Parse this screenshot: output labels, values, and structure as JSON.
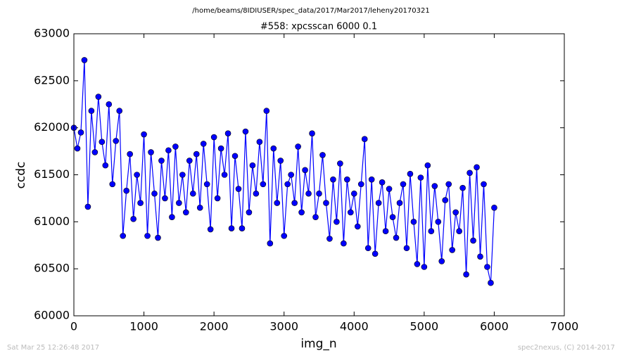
{
  "chart_data": {
    "type": "line",
    "suptitle": "/home/beams/8IDIUSER/spec_data/2017/Mar2017/leheny20170321",
    "title": "#558: xpcsscan 6000 0.1",
    "x_label": "img_n",
    "y_label": "ccdc",
    "footer_left": "Sat Mar 25 12:26:48 2017",
    "footer_right": "spec2nexus, (C) 2014-2017",
    "xlim": [
      0,
      7000
    ],
    "ylim": [
      60000,
      63000
    ],
    "xticks": [
      0,
      1000,
      2000,
      3000,
      4000,
      5000,
      6000,
      7000
    ],
    "yticks": [
      60000,
      60500,
      61000,
      61500,
      62000,
      62500,
      63000
    ],
    "series": [
      {
        "color": "#0000ff",
        "x": [
          0,
          50,
          100,
          150,
          200,
          250,
          300,
          350,
          400,
          450,
          500,
          550,
          600,
          650,
          700,
          750,
          800,
          850,
          900,
          950,
          1000,
          1050,
          1100,
          1150,
          1200,
          1250,
          1300,
          1350,
          1400,
          1450,
          1500,
          1550,
          1600,
          1650,
          1700,
          1750,
          1800,
          1850,
          1900,
          1950,
          2000,
          2050,
          2100,
          2150,
          2200,
          2250,
          2300,
          2350,
          2400,
          2450,
          2500,
          2550,
          2600,
          2650,
          2700,
          2750,
          2800,
          2850,
          2900,
          2950,
          3000,
          3050,
          3100,
          3150,
          3200,
          3250,
          3300,
          3350,
          3400,
          3450,
          3500,
          3550,
          3600,
          3650,
          3700,
          3750,
          3800,
          3850,
          3900,
          3950,
          4000,
          4050,
          4100,
          4150,
          4200,
          4250,
          4300,
          4350,
          4400,
          4450,
          4500,
          4550,
          4600,
          4650,
          4700,
          4750,
          4800,
          4850,
          4900,
          4950,
          5000,
          5050,
          5100,
          5150,
          5200,
          5250,
          5300,
          5350,
          5400,
          5450,
          5500,
          5550,
          5600,
          5650,
          5700,
          5750,
          5800,
          5850,
          5900,
          5950,
          6000
        ],
        "values": [
          62000,
          61780,
          61950,
          62720,
          61160,
          62180,
          61740,
          62330,
          61850,
          61600,
          62250,
          61400,
          61860,
          62180,
          60850,
          61330,
          61720,
          61030,
          61500,
          61200,
          61930,
          60850,
          61740,
          61300,
          60830,
          61650,
          61250,
          61760,
          61050,
          61800,
          61200,
          61500,
          61100,
          61650,
          61300,
          61720,
          61150,
          61830,
          61400,
          60920,
          61900,
          61250,
          61780,
          61500,
          61940,
          60930,
          61700,
          61350,
          60930,
          61960,
          61100,
          61600,
          61300,
          61850,
          61400,
          62180,
          60770,
          61780,
          61200,
          61650,
          60850,
          61400,
          61500,
          61200,
          61800,
          61100,
          61550,
          61300,
          61940,
          61050,
          61300,
          61710,
          61200,
          60820,
          61450,
          61000,
          61620,
          60770,
          61450,
          61100,
          61300,
          60950,
          61400,
          61880,
          60720,
          61450,
          60660,
          61200,
          61420,
          60900,
          61350,
          61050,
          60830,
          61200,
          61400,
          60720,
          61510,
          61000,
          60550,
          61470,
          60520,
          61600,
          60900,
          61380,
          61000,
          60580,
          61230,
          61400,
          60700,
          61100,
          60900,
          61360,
          60440,
          61520,
          60800,
          61580,
          60630,
          61400,
          60520,
          60350,
          61150
        ]
      }
    ]
  }
}
